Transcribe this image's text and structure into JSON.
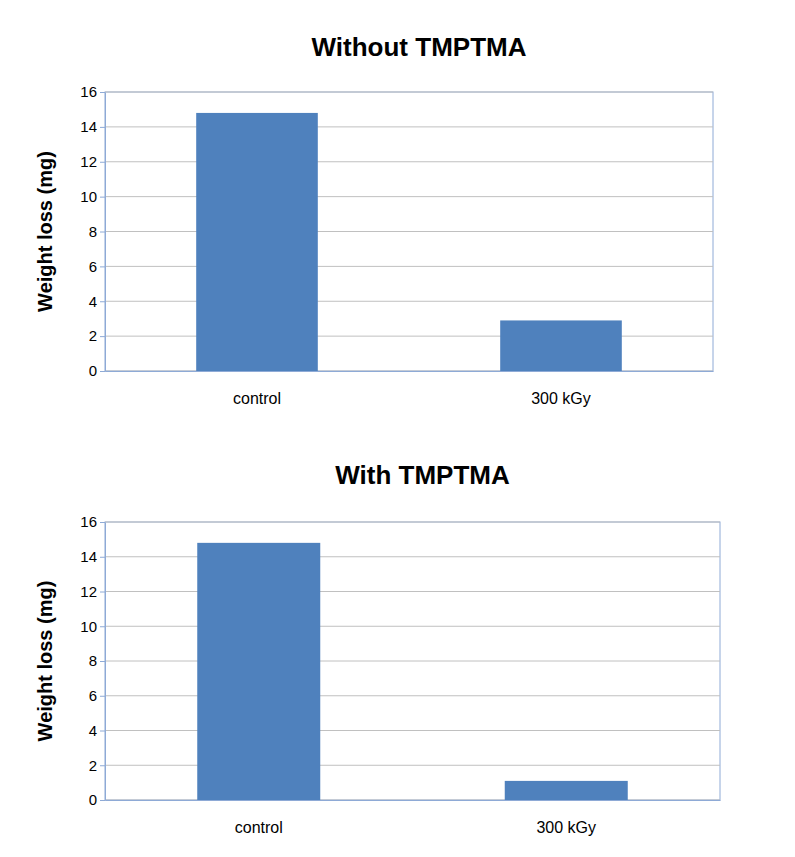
{
  "chart_data": [
    {
      "type": "bar",
      "title": "Without TMPTMA",
      "y_label": "Weight loss (mg)",
      "categories": [
        "control",
        "300 kGy"
      ],
      "values": [
        14.8,
        2.9
      ],
      "color": "#4f81bd",
      "ylim": [
        0,
        16
      ],
      "yticks": [
        0,
        2,
        4,
        6,
        8,
        10,
        12,
        14,
        16
      ],
      "grid": true
    },
    {
      "type": "bar",
      "title": "With TMPTMA",
      "y_label": "Weight loss (mg)",
      "categories": [
        "control",
        "300 kGy"
      ],
      "values": [
        14.8,
        1.1
      ],
      "color": "#4f81bd",
      "ylim": [
        0,
        16
      ],
      "yticks": [
        0,
        2,
        4,
        6,
        8,
        10,
        12,
        14,
        16
      ],
      "grid": true
    }
  ]
}
